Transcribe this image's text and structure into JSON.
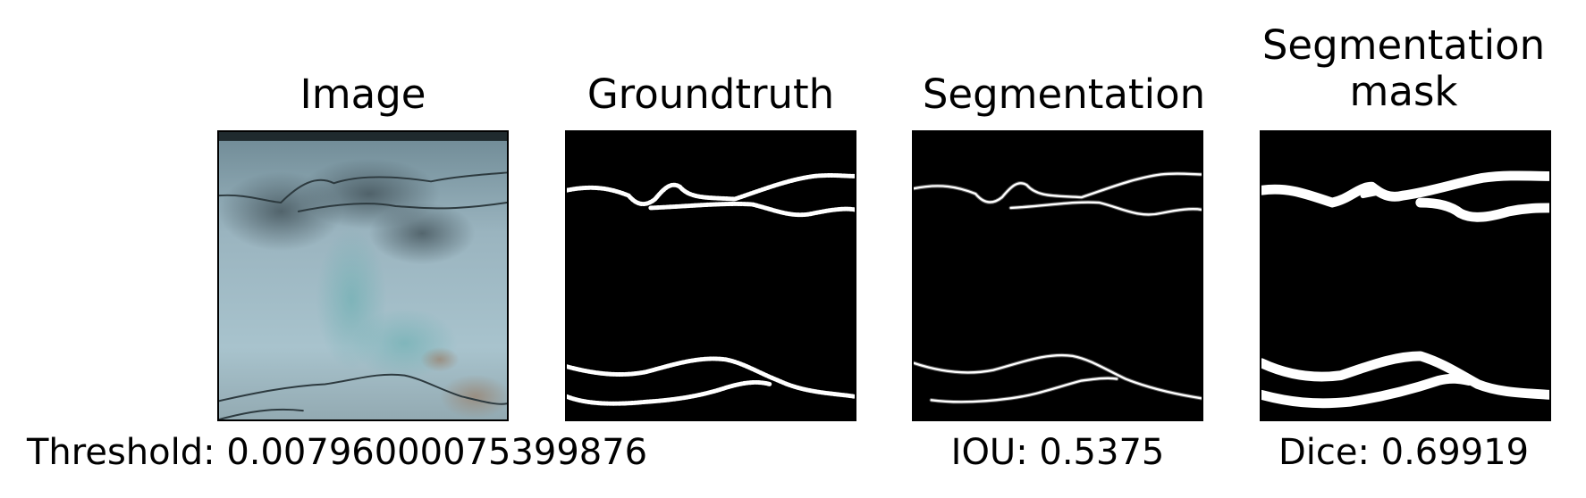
{
  "panels": {
    "image": {
      "title": "Image"
    },
    "groundtruth": {
      "title": "Groundtruth"
    },
    "segmentation": {
      "title": "Segmentation"
    },
    "mask": {
      "title_line1": "Segmentation",
      "title_line2": "mask"
    }
  },
  "metrics": {
    "threshold": "Threshold: 0.00796000075399876",
    "iou": "IOU: 0.5375",
    "dice": "Dice: 0.69919"
  },
  "colors": {
    "background": "#ffffff",
    "concrete": "#9fb9c5",
    "crack": "#3a4a50",
    "mask_bg": "#000000",
    "mask_fg": "#ffffff"
  }
}
